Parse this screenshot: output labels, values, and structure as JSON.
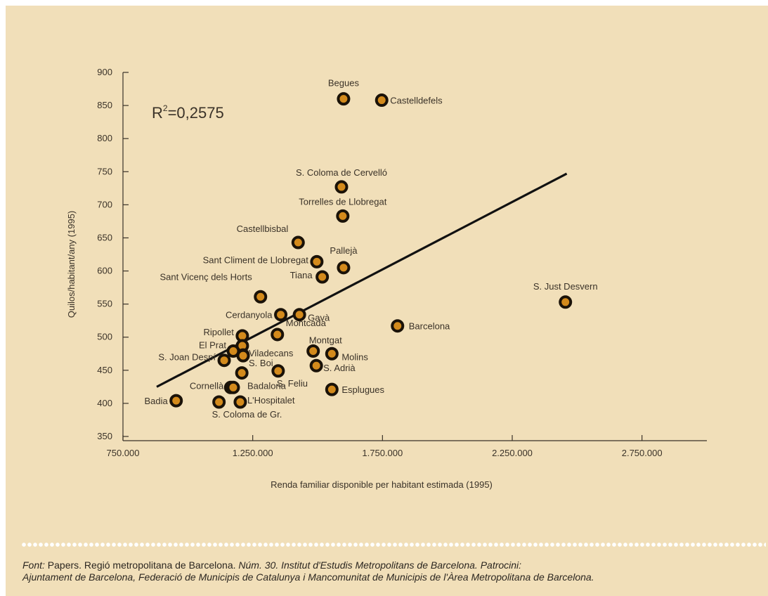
{
  "chart_data": {
    "type": "scatter",
    "xlabel": "Renda familiar disponible per habitant estimada (1995)",
    "ylabel": "Quilos/habitant/any (1995)",
    "xlim": [
      750000,
      3000000
    ],
    "ylim": [
      350,
      900
    ],
    "xticks": [
      750000,
      1250000,
      1750000,
      2250000,
      2750000
    ],
    "xtick_labels": [
      "750.000",
      "1.250.000",
      "1.750.000",
      "2.250.000",
      "2.750.000"
    ],
    "yticks": [
      350,
      400,
      450,
      500,
      550,
      600,
      650,
      700,
      750,
      800,
      850,
      900
    ],
    "ytick_labels": [
      "350",
      "400",
      "450",
      "500",
      "550",
      "600",
      "650",
      "700",
      "750",
      "800",
      "850",
      "900"
    ],
    "annotation": {
      "r2_prefix": "R",
      "r2_sup": "2",
      "r2_value": "=0,2575"
    },
    "trendline": {
      "x": [
        880000,
        2460000
      ],
      "y": [
        425,
        747
      ]
    },
    "point_color": "#d38a1c",
    "points": [
      {
        "label": "Begues",
        "x": 1600000,
        "y": 860
      },
      {
        "label": "Castelldefels",
        "x": 1747000,
        "y": 858
      },
      {
        "label": "S. Coloma de Cervelló",
        "x": 1592000,
        "y": 727
      },
      {
        "label": "Torrelles de Llobregat",
        "x": 1597000,
        "y": 683
      },
      {
        "label": "Castellbisbal",
        "x": 1425000,
        "y": 643
      },
      {
        "label": "Sant Climent de Llobregat",
        "x": 1497000,
        "y": 614
      },
      {
        "label": "Pallejà",
        "x": 1600000,
        "y": 605
      },
      {
        "label": "Tiana",
        "x": 1518000,
        "y": 591
      },
      {
        "label": "Sant Vicenç dels Horts",
        "x": 1280000,
        "y": 561
      },
      {
        "label": "S. Just Desvern",
        "x": 2455000,
        "y": 553
      },
      {
        "label": "Cerdanyola",
        "x": 1358000,
        "y": 534
      },
      {
        "label": "Gavà",
        "x": 1430000,
        "y": 534
      },
      {
        "label": "Barcelona",
        "x": 1808000,
        "y": 517
      },
      {
        "label": "Montcada",
        "x": 1345000,
        "y": 504
      },
      {
        "label": "Ripollet",
        "x": 1210000,
        "y": 502
      },
      {
        "label": "",
        "x": 1210000,
        "y": 487
      },
      {
        "label": "El Prat",
        "x": 1175000,
        "y": 479
      },
      {
        "label": "Viladecans",
        "x": 1213000,
        "y": 473
      },
      {
        "label": "Montgat",
        "x": 1483000,
        "y": 479
      },
      {
        "label": "Molins",
        "x": 1555000,
        "y": 475
      },
      {
        "label": "S. Joan Despí",
        "x": 1140000,
        "y": 465
      },
      {
        "label": "S. Boi",
        "x": 1213000,
        "y": 472
      },
      {
        "label": "S. Adrià",
        "x": 1495000,
        "y": 457
      },
      {
        "label": "S. Feliu",
        "x": 1348000,
        "y": 449
      },
      {
        "label": "",
        "x": 1208000,
        "y": 446
      },
      {
        "label": "Cornellà",
        "x": 1165000,
        "y": 424
      },
      {
        "label": "Badalona",
        "x": 1175000,
        "y": 424
      },
      {
        "label": "Esplugues",
        "x": 1555000,
        "y": 421
      },
      {
        "label": "Badia",
        "x": 955000,
        "y": 404
      },
      {
        "label": "S. Coloma de Gr.",
        "x": 1120000,
        "y": 402
      },
      {
        "label": "L'Hospitalet",
        "x": 1202000,
        "y": 402
      }
    ]
  },
  "caption": {
    "font_label": "Font:",
    "part1": " Papers. Regió metropolitana de Barcelona. ",
    "part2": "Núm. 30. Institut d'Estudis Metropolitans de Barcelona. Patrocini:",
    "line2": "Ajuntament de Barcelona, Federació de Municipis de Catalunya i Mancomunitat de Municipis de l'Àrea Metropolitana de Barcelona."
  }
}
